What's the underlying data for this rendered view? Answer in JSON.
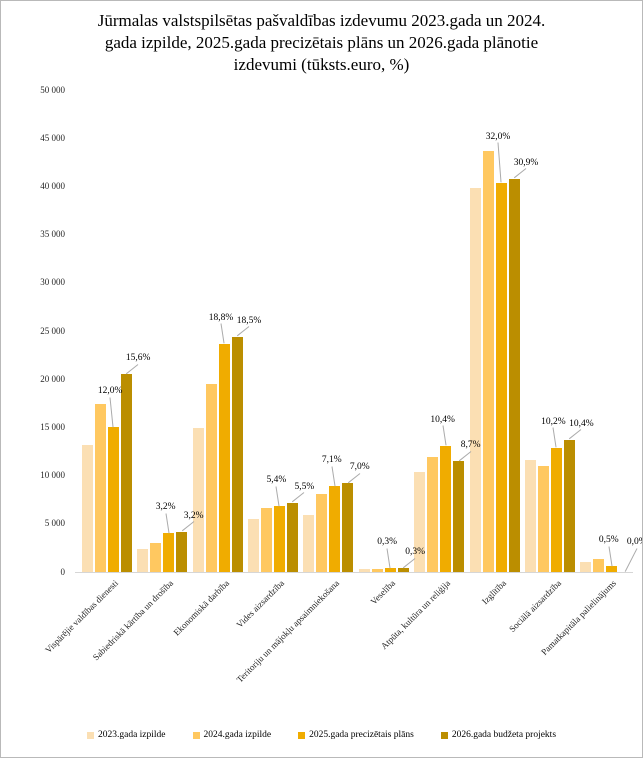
{
  "title": {
    "lines": [
      "Jūrmalas valstspilsētas pašvaldības izdevumu 2023.gada un 2024.",
      "gada izpilde, 2025.gada precizētais plāns un 2026.gada plānotie",
      "izdevumi (tūksts.euro, %)"
    ]
  },
  "chart_data": {
    "type": "bar",
    "title": "Jūrmalas valstspilsētas pašvaldības izdevumu 2023.gada un 2024. gada izpilde, 2025.gada precizētais plāns un 2026.gada plānotie izdevumi (tūksts.euro, %)",
    "unit": "tūksts.euro, %",
    "grid": false,
    "legend_position": "bottom",
    "ylim": [
      0,
      50000
    ],
    "ytick_step": 5000,
    "ytick_labels": [
      "0",
      "5 000",
      "10 000",
      "15 000",
      "20 000",
      "25 000",
      "30 000",
      "35 000",
      "40 000",
      "45 000",
      "50 000"
    ],
    "categories": [
      "Vispārējie valdības dienesti",
      "Sabiedriskā kārtība un drošība",
      "Ekonomiskā darbība",
      "Vides aizsardzība",
      "Teritoriju un mājokļu apsaimniekošana",
      "Veselība",
      "Atpūta, kultūra un reliģija",
      "Izglītība",
      "Sociālā aizsardzība",
      "Pamatkapitāla palielinājums"
    ],
    "series": [
      {
        "name": "2023.gada izpilde",
        "color": "#FBDFB3",
        "values": [
          13200,
          2400,
          14900,
          5500,
          5900,
          300,
          10400,
          39800,
          11600,
          1000
        ]
      },
      {
        "name": "2024.gada izpilde",
        "color": "#FFC860",
        "values": [
          17400,
          3000,
          19500,
          6600,
          8100,
          300,
          11900,
          43700,
          11000,
          1400
        ]
      },
      {
        "name": "2025.gada precizētais plāns",
        "color": "#F0AC00",
        "values": [
          15000,
          4000,
          23700,
          6800,
          8900,
          400,
          13100,
          40400,
          12900,
          600
        ],
        "labels": [
          "12,0%",
          "3,2%",
          "18,8%",
          "5,4%",
          "7,1%",
          "0,3%",
          "10,4%",
          "32,0%",
          "10,2%",
          "0,5%"
        ]
      },
      {
        "name": "2026.gada budžeta projekts",
        "color": "#BB8E00",
        "values": [
          20500,
          4200,
          24400,
          7200,
          9200,
          400,
          11500,
          40800,
          13700,
          0
        ],
        "labels": [
          "15,6%",
          "3,2%",
          "18,5%",
          "5,5%",
          "7,0%",
          "0,3%",
          "8,7%",
          "30,9%",
          "10,4%",
          "0,0%"
        ]
      }
    ],
    "label_dy_2025": [
      -10,
      0,
      0,
      0,
      0,
      0,
      0,
      -20,
      0,
      0
    ],
    "label_dy_2026": [
      0,
      0,
      0,
      0,
      0,
      0,
      0,
      0,
      0,
      -14
    ]
  }
}
